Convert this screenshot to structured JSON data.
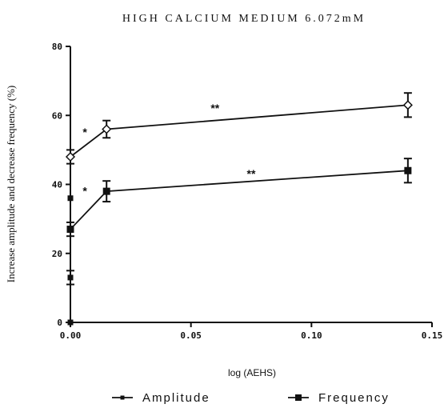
{
  "chart_data": {
    "type": "line",
    "title": "HIGH CALCIUM MEDIUM 6.072mM",
    "xlabel": "log (AEHS)",
    "ylabel": "Increase amplitude and decrease frequency (%)",
    "xlim": [
      0.0,
      0.15
    ],
    "ylim": [
      0,
      80
    ],
    "xticks": [
      "0.00",
      "0.05",
      "0.10",
      "0.15"
    ],
    "yticks": [
      "0",
      "20",
      "40",
      "60",
      "80"
    ],
    "grid": false,
    "legend_position": "bottom",
    "series": [
      {
        "name": "Amplitude",
        "marker": "diamond-open",
        "color": "#111111",
        "x": [
          0.0,
          0.015,
          0.14
        ],
        "y": [
          48,
          56,
          63
        ],
        "err": [
          2,
          2.5,
          3.5
        ]
      },
      {
        "name": "Frequency",
        "marker": "square-filled",
        "color": "#111111",
        "x": [
          0.0,
          0.015,
          0.14
        ],
        "y": [
          27,
          38,
          44
        ],
        "err": [
          2,
          3,
          3.5
        ]
      }
    ],
    "extra_points": [
      {
        "x": 0.0,
        "y": 36,
        "err": 0
      },
      {
        "x": 0.0,
        "y": 13,
        "err": 2
      },
      {
        "x": 0.0,
        "y": 0,
        "err": 0
      }
    ],
    "annotations": [
      {
        "text": "*",
        "x": 0.006,
        "y": 54
      },
      {
        "text": "**",
        "x": 0.06,
        "y": 61
      },
      {
        "text": "*",
        "x": 0.006,
        "y": 37
      },
      {
        "text": "**",
        "x": 0.075,
        "y": 42
      }
    ]
  }
}
